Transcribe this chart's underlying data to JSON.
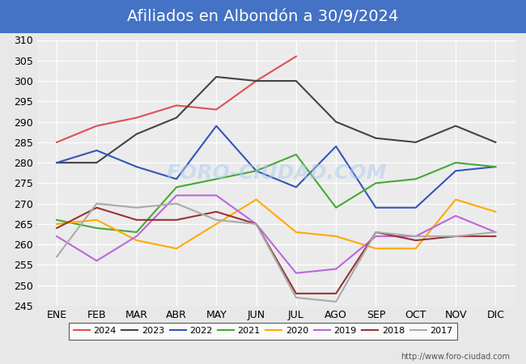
{
  "title": "Afiliados en Albondón a 30/9/2024",
  "title_color": "#ffffff",
  "title_bg_color": "#4472c4",
  "months": [
    "ENE",
    "FEB",
    "MAR",
    "ABR",
    "MAY",
    "JUN",
    "JUL",
    "AGO",
    "SEP",
    "OCT",
    "NOV",
    "DIC"
  ],
  "ylim": [
    245,
    310
  ],
  "series": [
    {
      "label": "2024",
      "color": "#e05050",
      "data": [
        285,
        289,
        291,
        294,
        293,
        300,
        306,
        null,
        null,
        null,
        null,
        null
      ]
    },
    {
      "label": "2023",
      "color": "#444444",
      "data": [
        280,
        280,
        287,
        291,
        301,
        300,
        300,
        290,
        286,
        285,
        289,
        285
      ]
    },
    {
      "label": "2022",
      "color": "#3355bb",
      "data": [
        280,
        283,
        279,
        276,
        289,
        278,
        274,
        284,
        269,
        269,
        278,
        279
      ]
    },
    {
      "label": "2021",
      "color": "#44aa33",
      "data": [
        266,
        264,
        263,
        274,
        276,
        278,
        282,
        269,
        275,
        276,
        280,
        279
      ]
    },
    {
      "label": "2020",
      "color": "#ffaa00",
      "data": [
        265,
        266,
        261,
        259,
        265,
        271,
        263,
        262,
        259,
        259,
        271,
        268
      ]
    },
    {
      "label": "2019",
      "color": "#bb66dd",
      "data": [
        262,
        256,
        262,
        272,
        272,
        265,
        253,
        254,
        262,
        262,
        267,
        263
      ]
    },
    {
      "label": "2018",
      "color": "#993333",
      "data": [
        264,
        269,
        266,
        266,
        268,
        265,
        248,
        248,
        263,
        261,
        262,
        262
      ]
    },
    {
      "label": "2017",
      "color": "#aaaaaa",
      "data": [
        257,
        270,
        269,
        270,
        266,
        265,
        247,
        246,
        263,
        262,
        262,
        263
      ]
    }
  ],
  "watermark": "FORO-CIUDAD.COM",
  "url": "http://www.foro-ciudad.com",
  "bg_color": "#e8e8e8",
  "plot_bg_color": "#ebebeb",
  "grid_color": "#ffffff",
  "xlabel_fontsize": 9,
  "ylabel_fontsize": 9,
  "title_fontsize": 14
}
